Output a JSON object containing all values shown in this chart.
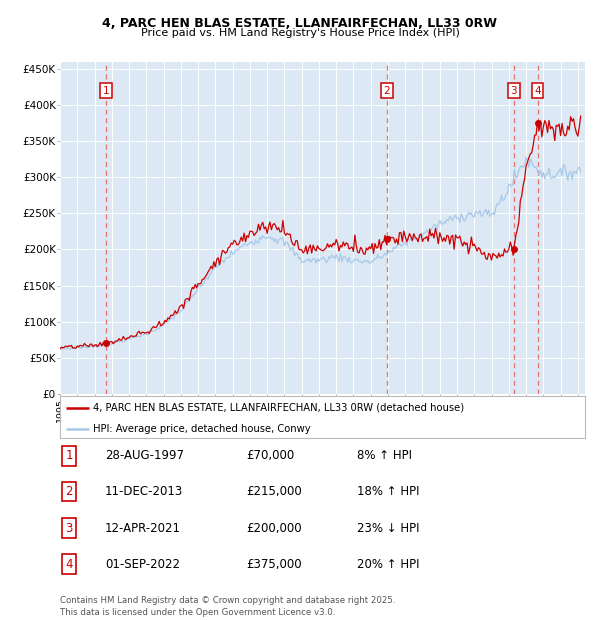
{
  "title_line1": "4, PARC HEN BLAS ESTATE, LLANFAIRFECHAN, LL33 0RW",
  "title_line2": "Price paid vs. HM Land Registry's House Price Index (HPI)",
  "ylim": [
    0,
    460000
  ],
  "yticks": [
    0,
    50000,
    100000,
    150000,
    200000,
    250000,
    300000,
    350000,
    400000,
    450000
  ],
  "ytick_labels": [
    "£0",
    "£50K",
    "£100K",
    "£150K",
    "£200K",
    "£250K",
    "£300K",
    "£350K",
    "£400K",
    "£450K"
  ],
  "plot_bg_color": "#dce9f5",
  "sale_dates": [
    "1997-08-28",
    "2013-12-11",
    "2021-04-12",
    "2022-09-01"
  ],
  "sale_prices": [
    70000,
    215000,
    200000,
    375000
  ],
  "sale_labels": [
    "1",
    "2",
    "3",
    "4"
  ],
  "legend_line1": "4, PARC HEN BLAS ESTATE, LLANFAIRFECHAN, LL33 0RW (detached house)",
  "legend_line2": "HPI: Average price, detached house, Conwy",
  "table_data": [
    [
      "1",
      "28-AUG-1997",
      "£70,000",
      "8% ↑ HPI"
    ],
    [
      "2",
      "11-DEC-2013",
      "£215,000",
      "18% ↑ HPI"
    ],
    [
      "3",
      "12-APR-2021",
      "£200,000",
      "23% ↓ HPI"
    ],
    [
      "4",
      "01-SEP-2022",
      "£375,000",
      "20% ↑ HPI"
    ]
  ],
  "footer": "Contains HM Land Registry data © Crown copyright and database right 2025.\nThis data is licensed under the Open Government Licence v3.0.",
  "hpi_color": "#a8c8e8",
  "price_color": "#cc0000",
  "dashed_color": "#e87070",
  "marker_color": "#cc0000",
  "hpi_anchors_years": [
    1995,
    1996,
    1997,
    1998,
    1999,
    2000,
    2001,
    2002,
    2003,
    2004,
    2005,
    2006,
    2007,
    2008,
    2009,
    2010,
    2011,
    2012,
    2013,
    2014,
    2015,
    2016,
    2017,
    2018,
    2019,
    2020,
    2021,
    2022,
    2023,
    2024,
    2025
  ],
  "hpi_anchors_months": [
    1,
    1,
    1,
    1,
    1,
    1,
    1,
    1,
    1,
    1,
    1,
    1,
    1,
    1,
    1,
    1,
    1,
    1,
    1,
    1,
    1,
    1,
    1,
    1,
    1,
    1,
    1,
    1,
    1,
    1,
    3
  ],
  "hpi_anchors_values": [
    62000,
    64000,
    66000,
    70000,
    76000,
    83000,
    95000,
    115000,
    145000,
    175000,
    195000,
    210000,
    220000,
    210000,
    185000,
    185000,
    190000,
    185000,
    183000,
    195000,
    210000,
    220000,
    235000,
    245000,
    250000,
    248000,
    285000,
    325000,
    305000,
    305000,
    310000
  ]
}
